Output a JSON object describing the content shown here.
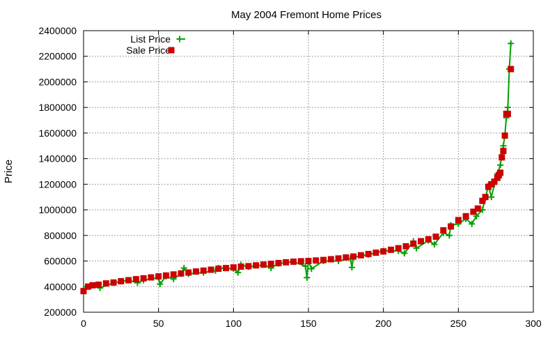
{
  "chart_data": {
    "type": "line",
    "title": "May 2004 Fremont Home Prices",
    "xlabel": "",
    "ylabel": "Price",
    "xlim": [
      0,
      300
    ],
    "ylim": [
      200000,
      2400000
    ],
    "x_ticks": [
      0,
      50,
      100,
      150,
      200,
      250,
      300
    ],
    "x_tick_labels": [
      "0",
      "50",
      "100",
      "150",
      "200",
      "250",
      "300"
    ],
    "y_ticks": [
      200000,
      400000,
      600000,
      800000,
      1000000,
      1200000,
      1400000,
      1600000,
      1800000,
      2000000,
      2200000,
      2400000
    ],
    "y_tick_labels": [
      "200000",
      "400000",
      "600000",
      "800000",
      "1000000",
      "1200000",
      "1400000",
      "1600000",
      "1800000",
      "2000000",
      "2200000",
      "2400000"
    ],
    "grid": true,
    "legend_position": "top-left",
    "series": [
      {
        "name": "List Price",
        "style": "lines+crosses",
        "color": "#00a000",
        "x": [
          0,
          2,
          5,
          11,
          20,
          30,
          36,
          40,
          50,
          51,
          55,
          60,
          65,
          67,
          70,
          80,
          88,
          90,
          100,
          103,
          105,
          110,
          120,
          125,
          130,
          140,
          148,
          149,
          150,
          152,
          160,
          170,
          178,
          179,
          180,
          190,
          200,
          210,
          214,
          220,
          222,
          230,
          234,
          240,
          244,
          245,
          250,
          255,
          259,
          262,
          266,
          268,
          270,
          272,
          274,
          276,
          278,
          280,
          281,
          282,
          283,
          284,
          285
        ],
        "values": [
          370000,
          400000,
          410000,
          390000,
          430000,
          450000,
          430000,
          450000,
          470000,
          420000,
          480000,
          460000,
          500000,
          545000,
          500000,
          510000,
          525000,
          545000,
          540000,
          510000,
          570000,
          555000,
          570000,
          545000,
          580000,
          595000,
          560000,
          470000,
          600000,
          540000,
          600000,
          600000,
          620000,
          550000,
          630000,
          650000,
          680000,
          680000,
          660000,
          755000,
          700000,
          760000,
          730000,
          820000,
          800000,
          880000,
          890000,
          930000,
          890000,
          950000,
          1000000,
          1090000,
          1190000,
          1100000,
          1200000,
          1280000,
          1350000,
          1500000,
          1580000,
          1720000,
          1800000,
          2100000,
          2300000
        ]
      },
      {
        "name": "Sale Price",
        "style": "points",
        "color": "#cc0000",
        "x": [
          0,
          3,
          6,
          10,
          15,
          20,
          25,
          30,
          35,
          40,
          45,
          50,
          55,
          60,
          65,
          70,
          75,
          80,
          85,
          90,
          95,
          100,
          105,
          110,
          115,
          120,
          125,
          130,
          135,
          140,
          145,
          150,
          155,
          160,
          165,
          170,
          175,
          180,
          185,
          190,
          195,
          200,
          205,
          210,
          215,
          220,
          225,
          230,
          235,
          240,
          245,
          250,
          255,
          260,
          263,
          266,
          268,
          270,
          272,
          274,
          276,
          277,
          278,
          279,
          280,
          281,
          282,
          283,
          285
        ],
        "values": [
          365000,
          400000,
          410000,
          415000,
          425000,
          432000,
          442000,
          450000,
          458000,
          465000,
          472000,
          480000,
          487000,
          495000,
          503000,
          510000,
          518000,
          525000,
          532000,
          540000,
          545000,
          550000,
          556000,
          560000,
          566000,
          572000,
          578000,
          584000,
          590000,
          595000,
          598000,
          600000,
          604000,
          608000,
          614000,
          620000,
          628000,
          635000,
          645000,
          655000,
          665000,
          675000,
          688000,
          700000,
          715000,
          735000,
          755000,
          770000,
          790000,
          840000,
          870000,
          920000,
          950000,
          985000,
          1010000,
          1070000,
          1100000,
          1180000,
          1200000,
          1220000,
          1250000,
          1270000,
          1290000,
          1410000,
          1460000,
          1580000,
          1750000,
          1750000,
          2100000
        ]
      }
    ]
  }
}
